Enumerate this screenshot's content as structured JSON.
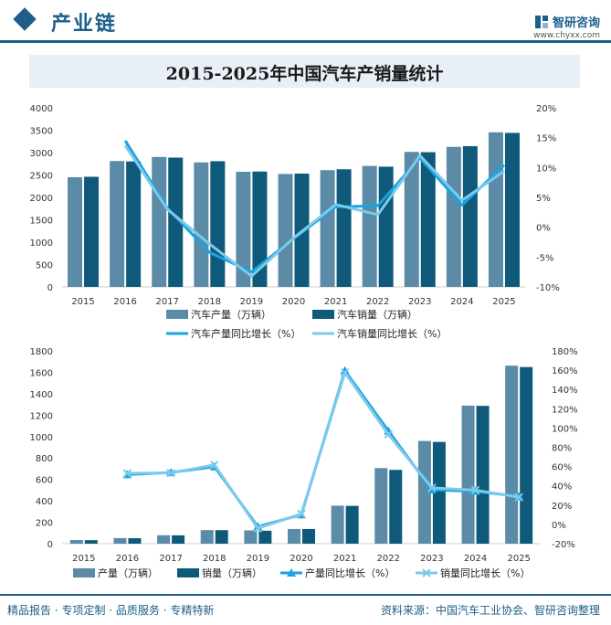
{
  "header": {
    "title": "产业链",
    "logo_name": "智研咨询",
    "logo_url": "www.chyxx.com"
  },
  "main_title": "2015-2025年中国汽车产销量统计",
  "footer": {
    "left": "精品报告 · 专项定制 · 品质服务 · 专精特新",
    "right": "资料来源：中国汽车工业协会、智研咨询整理"
  },
  "colors": {
    "bar_production": "#5b8ba6",
    "bar_sales": "#0f5a7a",
    "line_production": "#1aa3e0",
    "line_sales": "#7cc9ec",
    "accent": "#1d5f8a"
  },
  "chart_data": [
    {
      "type": "bar",
      "categories": [
        "2015",
        "2016",
        "2017",
        "2018",
        "2019",
        "2020",
        "2021",
        "2022",
        "2023",
        "2024",
        "2025"
      ],
      "series": [
        {
          "name": "汽车产量（万辆）",
          "type": "bar",
          "axis": "left",
          "values": [
            2450,
            2812,
            2902,
            2781,
            2572,
            2523,
            2608,
            2702,
            3016,
            3128,
            3453
          ]
        },
        {
          "name": "汽车销量（万辆）",
          "type": "bar",
          "axis": "left",
          "values": [
            2460,
            2803,
            2888,
            2808,
            2577,
            2531,
            2627,
            2686,
            3009,
            3144,
            3440
          ]
        },
        {
          "name": "汽车产量同比增长（%）",
          "type": "line",
          "axis": "right",
          "values": [
            null,
            14.5,
            3.2,
            -4.2,
            -7.5,
            -1.9,
            3.4,
            3.6,
            11.6,
            3.7,
            10.4
          ]
        },
        {
          "name": "汽车销量同比增长（%）",
          "type": "line",
          "axis": "right",
          "values": [
            null,
            13.7,
            3.0,
            -2.8,
            -8.2,
            -1.8,
            3.8,
            2.1,
            12.0,
            4.5,
            9.4
          ]
        }
      ],
      "ylim_left": [
        0,
        4000
      ],
      "yticks_left": [
        0,
        500,
        1000,
        1500,
        2000,
        2500,
        3000,
        3500,
        4000
      ],
      "ylim_right": [
        -10,
        20
      ],
      "yticks_right": [
        "-10%",
        "-5%",
        "0%",
        "5%",
        "10%",
        "15%",
        "20%"
      ],
      "yticks_right_values": [
        -10,
        -5,
        0,
        5,
        10,
        15,
        20
      ]
    },
    {
      "type": "bar",
      "categories": [
        "2015",
        "2016",
        "2017",
        "2018",
        "2019",
        "2020",
        "2021",
        "2022",
        "2023",
        "2024",
        "2025"
      ],
      "series": [
        {
          "name": "产量（万辆）",
          "type": "bar",
          "axis": "left",
          "values": [
            34,
            52,
            79,
            127,
            124,
            137,
            355,
            706,
            959,
            1289,
            1662
          ]
        },
        {
          "name": "销量（万辆）",
          "type": "bar",
          "axis": "left",
          "values": [
            33,
            51,
            78,
            126,
            121,
            137,
            353,
            689,
            950,
            1287,
            1649
          ]
        },
        {
          "name": "产量同比增长（%）",
          "type": "line",
          "axis": "right",
          "marker": "triangle",
          "values": [
            null,
            51.7,
            53.8,
            59.9,
            -2.3,
            10.0,
            159.5,
            96.9,
            35.8,
            34.4,
            28.9
          ]
        },
        {
          "name": "销量同比增长（%）",
          "type": "line",
          "axis": "right",
          "marker": "x",
          "values": [
            null,
            53.0,
            53.3,
            61.7,
            -4.0,
            10.9,
            157.5,
            93.4,
            37.9,
            35.5,
            28.2
          ]
        }
      ],
      "ylim_left": [
        0,
        1800
      ],
      "yticks_left": [
        0,
        200,
        400,
        600,
        800,
        1000,
        1200,
        1400,
        1600,
        1800
      ],
      "ylim_right": [
        -20,
        180
      ],
      "yticks_right": [
        "-20%",
        "0%",
        "20%",
        "40%",
        "60%",
        "80%",
        "100%",
        "120%",
        "140%",
        "160%",
        "180%"
      ],
      "yticks_right_values": [
        -20,
        0,
        20,
        40,
        60,
        80,
        100,
        120,
        140,
        160,
        180
      ]
    }
  ]
}
